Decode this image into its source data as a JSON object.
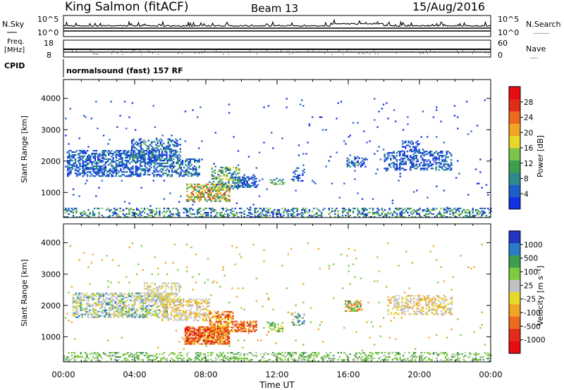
{
  "header": {
    "title": "King Salmon (fitACF)",
    "beam": "Beam 13",
    "date": "15/Aug/2016"
  },
  "sky_panel": {
    "left_label": "N.Sky",
    "left_ticks": [
      "10^5",
      "10^0"
    ],
    "right_ticks": [
      "10^5",
      "10^0"
    ],
    "right_label": "N.Search",
    "right_label_dots": "........"
  },
  "freq_panel": {
    "left_label_line1": "Freq.",
    "left_label_line2": "[MHz]",
    "left_ticks": [
      "18",
      "8"
    ],
    "right_ticks": [
      "60",
      "0"
    ],
    "right_label": "Nave",
    "right_label_dots": "...."
  },
  "cpid": {
    "label": "CPID",
    "text": "normalsound (fast) 157 RF"
  },
  "time_axis": {
    "label": "Time UT",
    "ticks": [
      "00:00",
      "04:00",
      "08:00",
      "12:00",
      "16:00",
      "20:00",
      "00:00"
    ]
  },
  "chart_data": [
    {
      "type": "heatmap",
      "title": "",
      "xlabel": "Time UT",
      "ylabel": "Slant Range [km]",
      "x_range_hours": [
        0,
        24
      ],
      "y_range_km": [
        200,
        4600
      ],
      "y_ticks": [
        1000,
        2000,
        3000,
        4000
      ],
      "colorbar": {
        "label": "Power [dB]",
        "ticks": [
          "4",
          "8",
          "12",
          "16",
          "20",
          "24",
          "28"
        ],
        "colors": [
          "#1430e0",
          "#1c5fc8",
          "#2e8a8a",
          "#3e9e50",
          "#7cc44a",
          "#e8d82c",
          "#f2a424",
          "#ec6a1e",
          "#e22c1a",
          "#e80c14"
        ]
      },
      "scatter_regions": [
        {
          "t0": 0.2,
          "t1": 5.2,
          "r0": 1500,
          "r1": 2350,
          "density": 0.55,
          "palette": [
            0,
            1,
            1,
            2
          ]
        },
        {
          "t0": 3.8,
          "t1": 6.6,
          "r0": 2050,
          "r1": 2700,
          "density": 0.5,
          "palette": [
            0,
            1,
            1,
            2,
            3
          ]
        },
        {
          "t0": 5.2,
          "t1": 7.6,
          "r0": 1500,
          "r1": 2050,
          "density": 0.45,
          "palette": [
            0,
            1,
            2,
            3
          ]
        },
        {
          "t0": 6.9,
          "t1": 9.3,
          "r0": 700,
          "r1": 1250,
          "density": 0.6,
          "palette": [
            2,
            3,
            4,
            5,
            6,
            7,
            8
          ]
        },
        {
          "t0": 8.3,
          "t1": 9.9,
          "r0": 1100,
          "r1": 1800,
          "density": 0.45,
          "palette": [
            1,
            2,
            3,
            4,
            5
          ]
        },
        {
          "t0": 9.6,
          "t1": 10.8,
          "r0": 1150,
          "r1": 1500,
          "density": 0.55,
          "palette": [
            0,
            1,
            2
          ]
        },
        {
          "t0": 11.6,
          "t1": 12.4,
          "r0": 1200,
          "r1": 1450,
          "density": 0.4,
          "palette": [
            1,
            3,
            4
          ]
        },
        {
          "t0": 12.8,
          "t1": 13.5,
          "r0": 1350,
          "r1": 1800,
          "density": 0.35,
          "palette": [
            0,
            1,
            2
          ]
        },
        {
          "t0": 15.9,
          "t1": 17.0,
          "r0": 1800,
          "r1": 2150,
          "density": 0.45,
          "palette": [
            0,
            1,
            2
          ]
        },
        {
          "t0": 18.0,
          "t1": 21.8,
          "r0": 1700,
          "r1": 2300,
          "density": 0.45,
          "palette": [
            0,
            1,
            2
          ]
        },
        {
          "t0": 19.0,
          "t1": 20.0,
          "r0": 2300,
          "r1": 2650,
          "density": 0.35,
          "palette": [
            0,
            1
          ]
        },
        {
          "t0": 0.0,
          "t1": 24.0,
          "r0": 200,
          "r1": 500,
          "density": 0.35,
          "palette": [
            0,
            1,
            2,
            3,
            4
          ]
        },
        {
          "t0": 0.0,
          "t1": 24.0,
          "r0": 500,
          "r1": 4000,
          "density": 0.01,
          "palette": [
            0,
            1
          ]
        }
      ]
    },
    {
      "type": "heatmap",
      "title": "",
      "xlabel": "Time UT",
      "ylabel": "Slant Range [km]",
      "x_range_hours": [
        0,
        24
      ],
      "y_range_km": [
        200,
        4600
      ],
      "y_ticks": [
        1000,
        2000,
        3000,
        4000
      ],
      "colorbar": {
        "label": "Velocity [m s^-1]",
        "ticks": [
          "1000",
          "500",
          "100",
          "25",
          "-25",
          "-100",
          "-500",
          "-1000"
        ],
        "colors": [
          "#2035c0",
          "#2a7cc8",
          "#3e9e50",
          "#7ccc3c",
          "#c2c2c2",
          "#e8d82c",
          "#f2a424",
          "#ec6a1e",
          "#e22c1a",
          "#e80c14"
        ]
      },
      "scatter_regions": [
        {
          "t0": 0.5,
          "t1": 5.8,
          "r0": 1600,
          "r1": 2400,
          "density": 0.5,
          "palette": [
            4,
            4,
            4,
            5,
            3,
            1
          ]
        },
        {
          "t0": 4.5,
          "t1": 6.5,
          "r0": 2100,
          "r1": 2700,
          "density": 0.4,
          "palette": [
            4,
            4,
            5
          ]
        },
        {
          "t0": 5.5,
          "t1": 8.2,
          "r0": 1500,
          "r1": 2200,
          "density": 0.5,
          "palette": [
            4,
            4,
            5,
            6
          ]
        },
        {
          "t0": 6.8,
          "t1": 9.3,
          "r0": 750,
          "r1": 1300,
          "density": 0.75,
          "palette": [
            6,
            7,
            7,
            8,
            8,
            9,
            5
          ]
        },
        {
          "t0": 8.2,
          "t1": 9.5,
          "r0": 1100,
          "r1": 1800,
          "density": 0.6,
          "palette": [
            6,
            7,
            8,
            5
          ]
        },
        {
          "t0": 9.6,
          "t1": 10.8,
          "r0": 1150,
          "r1": 1500,
          "density": 0.6,
          "palette": [
            6,
            7,
            8
          ]
        },
        {
          "t0": 11.5,
          "t1": 12.3,
          "r0": 1150,
          "r1": 1450,
          "density": 0.4,
          "palette": [
            2,
            3,
            5
          ]
        },
        {
          "t0": 12.8,
          "t1": 13.5,
          "r0": 1350,
          "r1": 1800,
          "density": 0.35,
          "palette": [
            1,
            2,
            4
          ]
        },
        {
          "t0": 15.8,
          "t1": 16.8,
          "r0": 1800,
          "r1": 2150,
          "density": 0.45,
          "palette": [
            2,
            3,
            6,
            7
          ]
        },
        {
          "t0": 18.2,
          "t1": 21.8,
          "r0": 1700,
          "r1": 2300,
          "density": 0.45,
          "palette": [
            4,
            4,
            5,
            6
          ]
        },
        {
          "t0": 0.0,
          "t1": 24.0,
          "r0": 200,
          "r1": 500,
          "density": 0.35,
          "palette": [
            3,
            3,
            4,
            2
          ]
        },
        {
          "t0": 0.0,
          "t1": 24.0,
          "r0": 500,
          "r1": 4000,
          "density": 0.01,
          "palette": [
            3,
            6
          ]
        }
      ]
    }
  ]
}
